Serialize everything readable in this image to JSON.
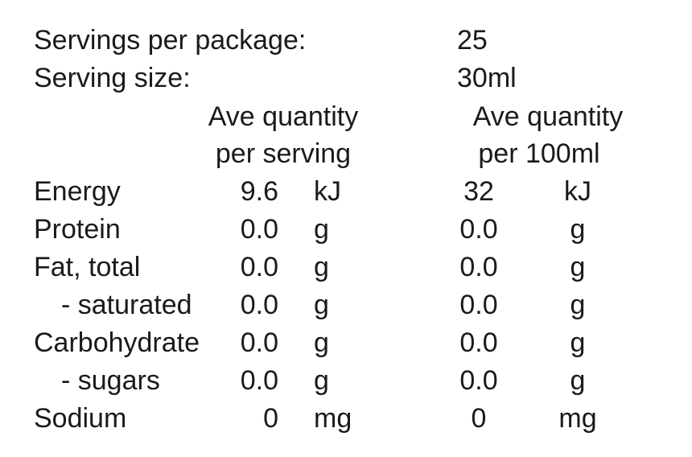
{
  "servings": {
    "label": "Servings per package:",
    "value": "25"
  },
  "serving_size": {
    "label": "Serving size:",
    "value": "30ml"
  },
  "column_headings": [
    [
      "Ave quantity",
      "per serving"
    ],
    [
      "Ave quantity",
      "per 100ml"
    ]
  ],
  "table": {
    "rows": [
      [
        "Energy",
        "9.6",
        "kJ",
        "32",
        "kJ"
      ],
      [
        "Protein",
        "0.0",
        "g",
        "0.0",
        "g"
      ],
      [
        "Fat, total",
        "0.0",
        "g",
        "0.0",
        "g"
      ],
      [
        "- saturated",
        "0.0",
        "g",
        "0.0",
        "g"
      ],
      [
        "Carbohydrate",
        "0.0",
        "g",
        "0.0",
        "g"
      ],
      [
        "- sugars",
        "0.0",
        "g",
        "0.0",
        "g"
      ],
      [
        "Sodium",
        "0",
        "mg",
        "0",
        "mg"
      ]
    ]
  }
}
